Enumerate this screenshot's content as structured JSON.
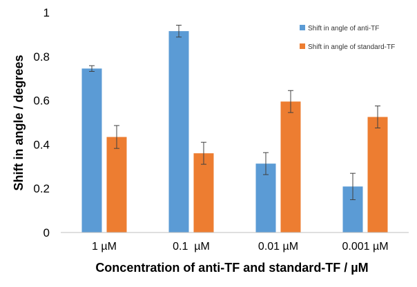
{
  "chart_data": {
    "type": "bar",
    "categories": [
      "1 µM",
      "0.1  µM",
      "0.01 µM",
      "0.001 µM"
    ],
    "series": [
      {
        "name": "Shift in angle of anti-TF",
        "color": "#5b9bd5",
        "values": [
          0.745,
          0.915,
          0.313,
          0.209
        ],
        "errors": [
          0.013,
          0.027,
          0.05,
          0.06
        ]
      },
      {
        "name": "Shift in angle of standard-TF",
        "color": "#ed7d31",
        "values": [
          0.434,
          0.36,
          0.595,
          0.525
        ],
        "errors": [
          0.052,
          0.05,
          0.05,
          0.05
        ]
      }
    ],
    "xlabel": "Concentration of anti-TF and standard-TF / µM",
    "ylabel": "Shift in angle / degrees",
    "ylim": [
      0,
      1
    ],
    "yticks": [
      "0",
      "0.2",
      "0.4",
      "0.6",
      "0.8",
      "1"
    ],
    "grid": false,
    "legend": "top-right"
  }
}
